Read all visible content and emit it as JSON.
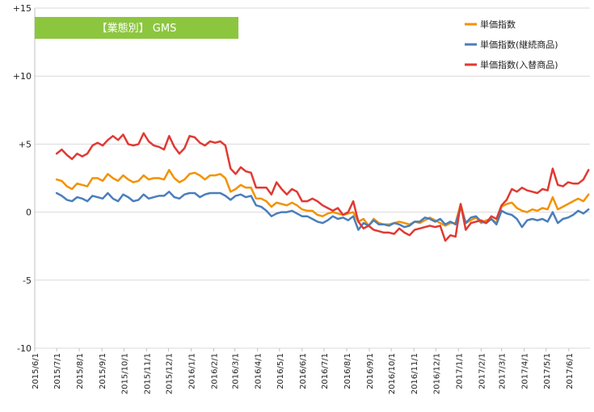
{
  "chart_data": {
    "type": "line",
    "title": "【業態別】 GMS",
    "title_bg_color": "#8cc63f",
    "ylim": [
      -10,
      15
    ],
    "yticks": [
      "+15",
      "+10",
      "+5",
      "0",
      "-5",
      "-10"
    ],
    "ytick_values": [
      15,
      10,
      5,
      0,
      -5,
      -10
    ],
    "grid": "horizontal",
    "legend_position": "top-right",
    "x_tick_labels": [
      "2015/6/1",
      "2015/7/1",
      "2015/8/1",
      "2015/9/1",
      "2015/10/1",
      "2015/11/1",
      "2015/12/1",
      "2016/1/1",
      "2016/2/1",
      "2016/3/1",
      "2016/4/1",
      "2016/5/1",
      "2016/6/1",
      "2016/7/1",
      "2016/8/1",
      "2016/9/1",
      "2016/10/1",
      "2016/11/1",
      "2016/12/1",
      "2017/1/1",
      "2017/2/1",
      "2017/3/1",
      "2017/4/1",
      "2017/5/1",
      "2017/6/1"
    ],
    "x_start": "2015/6/1",
    "x_end": "2017/6/30",
    "series": [
      {
        "name": "単価指数",
        "color": "#f39200",
        "x": [
          "2015/7/1",
          "2015/7/8",
          "2015/7/15",
          "2015/7/22",
          "2015/7/29",
          "2015/8/5",
          "2015/8/12",
          "2015/8/19",
          "2015/8/26",
          "2015/9/2",
          "2015/9/9",
          "2015/9/16",
          "2015/9/23",
          "2015/9/30",
          "2015/10/7",
          "2015/10/14",
          "2015/10/21",
          "2015/10/28",
          "2015/11/4",
          "2015/11/11",
          "2015/11/18",
          "2015/11/25",
          "2015/12/2",
          "2015/12/9",
          "2015/12/16",
          "2015/12/23",
          "2015/12/30",
          "2016/1/6",
          "2016/1/13",
          "2016/1/20",
          "2016/1/27",
          "2016/2/3",
          "2016/2/10",
          "2016/2/17",
          "2016/2/24",
          "2016/3/2",
          "2016/3/9",
          "2016/3/16",
          "2016/3/23",
          "2016/3/30",
          "2016/4/6",
          "2016/4/13",
          "2016/4/20",
          "2016/4/27",
          "2016/5/4",
          "2016/5/11",
          "2016/5/18",
          "2016/5/25",
          "2016/6/1",
          "2016/6/8",
          "2016/6/15",
          "2016/6/22",
          "2016/6/29",
          "2016/7/6",
          "2016/7/13",
          "2016/7/20",
          "2016/7/27",
          "2016/8/3",
          "2016/8/10",
          "2016/8/17",
          "2016/8/24",
          "2016/8/31",
          "2016/9/7",
          "2016/9/14",
          "2016/9/21",
          "2016/9/28",
          "2016/10/5",
          "2016/10/12",
          "2016/10/19",
          "2016/10/26",
          "2016/11/2",
          "2016/11/9",
          "2016/11/16",
          "2016/11/23",
          "2016/11/30",
          "2016/12/7",
          "2016/12/14",
          "2016/12/21",
          "2016/12/28",
          "2017/1/4",
          "2017/1/11",
          "2017/1/18",
          "2017/1/25",
          "2017/2/1",
          "2017/2/8",
          "2017/2/15",
          "2017/2/22",
          "2017/3/1",
          "2017/3/8",
          "2017/3/15",
          "2017/3/22",
          "2017/3/29",
          "2017/4/5",
          "2017/4/12",
          "2017/4/19",
          "2017/4/26",
          "2017/5/3",
          "2017/5/10",
          "2017/5/17",
          "2017/5/24",
          "2017/5/31",
          "2017/6/7",
          "2017/6/14",
          "2017/6/21",
          "2017/6/28"
        ],
        "values": [
          2.4,
          2.3,
          1.9,
          1.7,
          2.1,
          2.0,
          1.9,
          2.5,
          2.5,
          2.3,
          2.8,
          2.5,
          2.3,
          2.7,
          2.4,
          2.2,
          2.3,
          2.7,
          2.4,
          2.5,
          2.5,
          2.4,
          3.1,
          2.5,
          2.2,
          2.4,
          2.8,
          2.9,
          2.7,
          2.4,
          2.7,
          2.7,
          2.8,
          2.5,
          1.5,
          1.7,
          2.0,
          1.8,
          1.8,
          1.0,
          1.0,
          0.8,
          0.4,
          0.7,
          0.6,
          0.5,
          0.7,
          0.5,
          0.2,
          0.1,
          0.1,
          -0.2,
          -0.3,
          -0.1,
          0.0,
          -0.1,
          -0.2,
          -0.1,
          0.0,
          -0.7,
          -0.5,
          -1.0,
          -0.5,
          -0.8,
          -0.9,
          -0.9,
          -0.8,
          -0.7,
          -0.8,
          -0.9,
          -0.7,
          -0.8,
          -0.6,
          -0.4,
          -0.6,
          -0.8,
          -1.0,
          -0.8,
          -0.8,
          0.6,
          -0.8,
          -0.6,
          -0.4,
          -0.8,
          -0.6,
          -0.5,
          -0.8,
          0.4,
          0.6,
          0.7,
          0.3,
          0.1,
          0.0,
          0.2,
          0.1,
          0.3,
          0.2,
          1.1,
          0.2,
          0.4,
          0.6,
          0.8,
          1.0,
          0.8,
          1.3
        ]
      },
      {
        "name": "単価指数(継続商品)",
        "color": "#4a7ebb",
        "x": [
          "2015/7/1",
          "2015/7/8",
          "2015/7/15",
          "2015/7/22",
          "2015/7/29",
          "2015/8/5",
          "2015/8/12",
          "2015/8/19",
          "2015/8/26",
          "2015/9/2",
          "2015/9/9",
          "2015/9/16",
          "2015/9/23",
          "2015/9/30",
          "2015/10/7",
          "2015/10/14",
          "2015/10/21",
          "2015/10/28",
          "2015/11/4",
          "2015/11/11",
          "2015/11/18",
          "2015/11/25",
          "2015/12/2",
          "2015/12/9",
          "2015/12/16",
          "2015/12/23",
          "2015/12/30",
          "2016/1/6",
          "2016/1/13",
          "2016/1/20",
          "2016/1/27",
          "2016/2/3",
          "2016/2/10",
          "2016/2/17",
          "2016/2/24",
          "2016/3/2",
          "2016/3/9",
          "2016/3/16",
          "2016/3/23",
          "2016/3/30",
          "2016/4/6",
          "2016/4/13",
          "2016/4/20",
          "2016/4/27",
          "2016/5/4",
          "2016/5/11",
          "2016/5/18",
          "2016/5/25",
          "2016/6/1",
          "2016/6/8",
          "2016/6/15",
          "2016/6/22",
          "2016/6/29",
          "2016/7/6",
          "2016/7/13",
          "2016/7/20",
          "2016/7/27",
          "2016/8/3",
          "2016/8/10",
          "2016/8/17",
          "2016/8/24",
          "2016/8/31",
          "2016/9/7",
          "2016/9/14",
          "2016/9/21",
          "2016/9/28",
          "2016/10/5",
          "2016/10/12",
          "2016/10/19",
          "2016/10/26",
          "2016/11/2",
          "2016/11/9",
          "2016/11/16",
          "2016/11/23",
          "2016/11/30",
          "2016/12/7",
          "2016/12/14",
          "2016/12/21",
          "2016/12/28",
          "2017/1/4",
          "2017/1/11",
          "2017/1/18",
          "2017/1/25",
          "2017/2/1",
          "2017/2/8",
          "2017/2/15",
          "2017/2/22",
          "2017/3/1",
          "2017/3/8",
          "2017/3/15",
          "2017/3/22",
          "2017/3/29",
          "2017/4/5",
          "2017/4/12",
          "2017/4/19",
          "2017/4/26",
          "2017/5/3",
          "2017/5/10",
          "2017/5/17",
          "2017/5/24",
          "2017/5/31",
          "2017/6/7",
          "2017/6/14",
          "2017/6/21",
          "2017/6/28"
        ],
        "values": [
          1.4,
          1.2,
          0.9,
          0.8,
          1.1,
          1.0,
          0.8,
          1.2,
          1.1,
          1.0,
          1.4,
          1.0,
          0.8,
          1.3,
          1.1,
          0.8,
          0.9,
          1.3,
          1.0,
          1.1,
          1.2,
          1.2,
          1.5,
          1.1,
          1.0,
          1.3,
          1.4,
          1.4,
          1.1,
          1.3,
          1.4,
          1.4,
          1.4,
          1.2,
          0.9,
          1.2,
          1.3,
          1.1,
          1.2,
          0.5,
          0.4,
          0.1,
          -0.3,
          -0.1,
          0.0,
          0.0,
          0.1,
          -0.1,
          -0.3,
          -0.3,
          -0.5,
          -0.7,
          -0.8,
          -0.6,
          -0.3,
          -0.5,
          -0.4,
          -0.6,
          -0.3,
          -1.3,
          -0.8,
          -1.0,
          -0.6,
          -0.9,
          -0.9,
          -1.0,
          -0.8,
          -0.9,
          -1.1,
          -1.0,
          -0.7,
          -0.7,
          -0.4,
          -0.5,
          -0.7,
          -0.5,
          -0.9,
          -0.7,
          -0.9,
          0.4,
          -0.8,
          -0.4,
          -0.3,
          -0.7,
          -0.8,
          -0.5,
          -0.9,
          0.1,
          -0.1,
          -0.2,
          -0.5,
          -1.1,
          -0.6,
          -0.5,
          -0.6,
          -0.5,
          -0.7,
          0.0,
          -0.8,
          -0.5,
          -0.4,
          -0.2,
          0.1,
          -0.1,
          0.2
        ]
      },
      {
        "name": "単価指数(入替商品)",
        "color": "#e03a33",
        "x": [
          "2015/7/1",
          "2015/7/8",
          "2015/7/15",
          "2015/7/22",
          "2015/7/29",
          "2015/8/5",
          "2015/8/12",
          "2015/8/19",
          "2015/8/26",
          "2015/9/2",
          "2015/9/9",
          "2015/9/16",
          "2015/9/23",
          "2015/9/30",
          "2015/10/7",
          "2015/10/14",
          "2015/10/21",
          "2015/10/28",
          "2015/11/4",
          "2015/11/11",
          "2015/11/18",
          "2015/11/25",
          "2015/12/2",
          "2015/12/9",
          "2015/12/16",
          "2015/12/23",
          "2015/12/30",
          "2016/1/6",
          "2016/1/13",
          "2016/1/20",
          "2016/1/27",
          "2016/2/3",
          "2016/2/10",
          "2016/2/17",
          "2016/2/24",
          "2016/3/2",
          "2016/3/9",
          "2016/3/16",
          "2016/3/23",
          "2016/3/30",
          "2016/4/6",
          "2016/4/13",
          "2016/4/20",
          "2016/4/27",
          "2016/5/4",
          "2016/5/11",
          "2016/5/18",
          "2016/5/25",
          "2016/6/1",
          "2016/6/8",
          "2016/6/15",
          "2016/6/22",
          "2016/6/29",
          "2016/7/6",
          "2016/7/13",
          "2016/7/20",
          "2016/7/27",
          "2016/8/3",
          "2016/8/10",
          "2016/8/17",
          "2016/8/24",
          "2016/8/31",
          "2016/9/7",
          "2016/9/14",
          "2016/9/21",
          "2016/9/28",
          "2016/10/5",
          "2016/10/12",
          "2016/10/19",
          "2016/10/26",
          "2016/11/2",
          "2016/11/9",
          "2016/11/16",
          "2016/11/23",
          "2016/11/30",
          "2016/12/7",
          "2016/12/14",
          "2016/12/21",
          "2016/12/28",
          "2017/1/4",
          "2017/1/11",
          "2017/1/18",
          "2017/1/25",
          "2017/2/1",
          "2017/2/8",
          "2017/2/15",
          "2017/2/22",
          "2017/3/1",
          "2017/3/8",
          "2017/3/15",
          "2017/3/22",
          "2017/3/29",
          "2017/4/5",
          "2017/4/12",
          "2017/4/19",
          "2017/4/26",
          "2017/5/3",
          "2017/5/10",
          "2017/5/17",
          "2017/5/24",
          "2017/5/31",
          "2017/6/7",
          "2017/6/14",
          "2017/6/21",
          "2017/6/28"
        ],
        "values": [
          4.3,
          4.6,
          4.2,
          3.9,
          4.3,
          4.1,
          4.3,
          4.9,
          5.1,
          4.9,
          5.3,
          5.6,
          5.3,
          5.7,
          5.0,
          4.9,
          5.0,
          5.8,
          5.2,
          4.9,
          4.8,
          4.6,
          5.6,
          4.8,
          4.3,
          4.7,
          5.6,
          5.5,
          5.1,
          4.9,
          5.2,
          5.1,
          5.2,
          4.9,
          3.2,
          2.8,
          3.3,
          3.0,
          2.9,
          1.8,
          1.8,
          1.8,
          1.3,
          2.2,
          1.7,
          1.3,
          1.7,
          1.5,
          0.8,
          0.8,
          1.0,
          0.8,
          0.5,
          0.3,
          0.1,
          0.3,
          -0.2,
          0.0,
          0.8,
          -0.7,
          -1.2,
          -1.0,
          -1.3,
          -1.4,
          -1.5,
          -1.5,
          -1.6,
          -1.2,
          -1.5,
          -1.7,
          -1.3,
          -1.2,
          -1.1,
          -1.0,
          -1.1,
          -1.0,
          -2.1,
          -1.7,
          -1.8,
          0.6,
          -1.3,
          -0.8,
          -0.7,
          -0.6,
          -0.8,
          -0.3,
          -0.5,
          0.5,
          0.9,
          1.7,
          1.5,
          1.8,
          1.6,
          1.5,
          1.4,
          1.7,
          1.6,
          3.2,
          2.0,
          1.9,
          2.2,
          2.1,
          2.1,
          2.4,
          3.1
        ]
      }
    ]
  }
}
